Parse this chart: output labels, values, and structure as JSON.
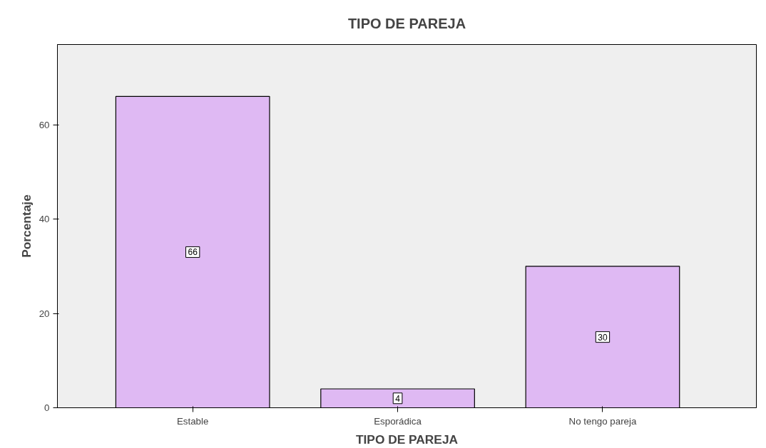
{
  "chart_data": {
    "type": "bar",
    "title": "TIPO DE PAREJA",
    "xlabel": "TIPO DE PAREJA",
    "ylabel": "Porcentaje",
    "categories": [
      "Estable",
      "Esporádica",
      "No tengo pareja"
    ],
    "values": [
      66,
      4,
      30
    ],
    "color": "#dfb9f3",
    "ylim": [
      0,
      77
    ],
    "yticks": [
      0,
      20,
      40,
      60
    ],
    "grid": false,
    "data_labels": true
  }
}
